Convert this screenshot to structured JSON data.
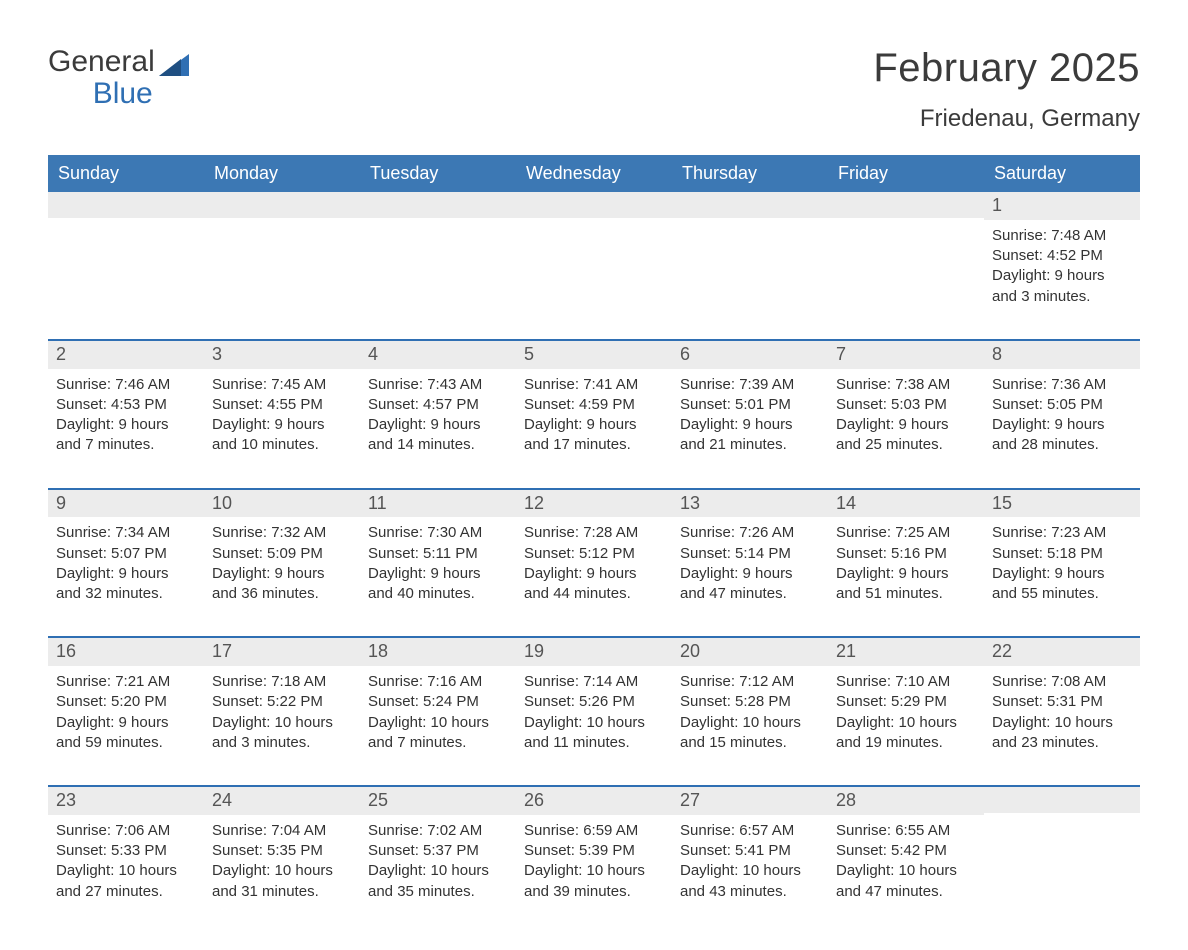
{
  "logo": {
    "word1": "General",
    "word2": "Blue",
    "accent_color": "#2f6fb3",
    "text_color": "#3b3b3b"
  },
  "title": "February 2025",
  "subtitle": "Friedenau, Germany",
  "colors": {
    "header_bg": "#3c78b4",
    "header_text": "#ffffff",
    "week_rule": "#2f6fb3",
    "daynum_bg": "#ececec",
    "body_text": "#333333",
    "page_bg": "#ffffff"
  },
  "typography": {
    "title_fontsize": 40,
    "subtitle_fontsize": 24,
    "dayhead_fontsize": 18,
    "daynum_fontsize": 18,
    "cell_fontsize": 15
  },
  "day_headers": [
    "Sunday",
    "Monday",
    "Tuesday",
    "Wednesday",
    "Thursday",
    "Friday",
    "Saturday"
  ],
  "weeks": [
    [
      null,
      null,
      null,
      null,
      null,
      null,
      {
        "day": "1",
        "sunrise": "Sunrise: 7:48 AM",
        "sunset": "Sunset: 4:52 PM",
        "daylight1": "Daylight: 9 hours",
        "daylight2": "and 3 minutes."
      }
    ],
    [
      {
        "day": "2",
        "sunrise": "Sunrise: 7:46 AM",
        "sunset": "Sunset: 4:53 PM",
        "daylight1": "Daylight: 9 hours",
        "daylight2": "and 7 minutes."
      },
      {
        "day": "3",
        "sunrise": "Sunrise: 7:45 AM",
        "sunset": "Sunset: 4:55 PM",
        "daylight1": "Daylight: 9 hours",
        "daylight2": "and 10 minutes."
      },
      {
        "day": "4",
        "sunrise": "Sunrise: 7:43 AM",
        "sunset": "Sunset: 4:57 PM",
        "daylight1": "Daylight: 9 hours",
        "daylight2": "and 14 minutes."
      },
      {
        "day": "5",
        "sunrise": "Sunrise: 7:41 AM",
        "sunset": "Sunset: 4:59 PM",
        "daylight1": "Daylight: 9 hours",
        "daylight2": "and 17 minutes."
      },
      {
        "day": "6",
        "sunrise": "Sunrise: 7:39 AM",
        "sunset": "Sunset: 5:01 PM",
        "daylight1": "Daylight: 9 hours",
        "daylight2": "and 21 minutes."
      },
      {
        "day": "7",
        "sunrise": "Sunrise: 7:38 AM",
        "sunset": "Sunset: 5:03 PM",
        "daylight1": "Daylight: 9 hours",
        "daylight2": "and 25 minutes."
      },
      {
        "day": "8",
        "sunrise": "Sunrise: 7:36 AM",
        "sunset": "Sunset: 5:05 PM",
        "daylight1": "Daylight: 9 hours",
        "daylight2": "and 28 minutes."
      }
    ],
    [
      {
        "day": "9",
        "sunrise": "Sunrise: 7:34 AM",
        "sunset": "Sunset: 5:07 PM",
        "daylight1": "Daylight: 9 hours",
        "daylight2": "and 32 minutes."
      },
      {
        "day": "10",
        "sunrise": "Sunrise: 7:32 AM",
        "sunset": "Sunset: 5:09 PM",
        "daylight1": "Daylight: 9 hours",
        "daylight2": "and 36 minutes."
      },
      {
        "day": "11",
        "sunrise": "Sunrise: 7:30 AM",
        "sunset": "Sunset: 5:11 PM",
        "daylight1": "Daylight: 9 hours",
        "daylight2": "and 40 minutes."
      },
      {
        "day": "12",
        "sunrise": "Sunrise: 7:28 AM",
        "sunset": "Sunset: 5:12 PM",
        "daylight1": "Daylight: 9 hours",
        "daylight2": "and 44 minutes."
      },
      {
        "day": "13",
        "sunrise": "Sunrise: 7:26 AM",
        "sunset": "Sunset: 5:14 PM",
        "daylight1": "Daylight: 9 hours",
        "daylight2": "and 47 minutes."
      },
      {
        "day": "14",
        "sunrise": "Sunrise: 7:25 AM",
        "sunset": "Sunset: 5:16 PM",
        "daylight1": "Daylight: 9 hours",
        "daylight2": "and 51 minutes."
      },
      {
        "day": "15",
        "sunrise": "Sunrise: 7:23 AM",
        "sunset": "Sunset: 5:18 PM",
        "daylight1": "Daylight: 9 hours",
        "daylight2": "and 55 minutes."
      }
    ],
    [
      {
        "day": "16",
        "sunrise": "Sunrise: 7:21 AM",
        "sunset": "Sunset: 5:20 PM",
        "daylight1": "Daylight: 9 hours",
        "daylight2": "and 59 minutes."
      },
      {
        "day": "17",
        "sunrise": "Sunrise: 7:18 AM",
        "sunset": "Sunset: 5:22 PM",
        "daylight1": "Daylight: 10 hours",
        "daylight2": "and 3 minutes."
      },
      {
        "day": "18",
        "sunrise": "Sunrise: 7:16 AM",
        "sunset": "Sunset: 5:24 PM",
        "daylight1": "Daylight: 10 hours",
        "daylight2": "and 7 minutes."
      },
      {
        "day": "19",
        "sunrise": "Sunrise: 7:14 AM",
        "sunset": "Sunset: 5:26 PM",
        "daylight1": "Daylight: 10 hours",
        "daylight2": "and 11 minutes."
      },
      {
        "day": "20",
        "sunrise": "Sunrise: 7:12 AM",
        "sunset": "Sunset: 5:28 PM",
        "daylight1": "Daylight: 10 hours",
        "daylight2": "and 15 minutes."
      },
      {
        "day": "21",
        "sunrise": "Sunrise: 7:10 AM",
        "sunset": "Sunset: 5:29 PM",
        "daylight1": "Daylight: 10 hours",
        "daylight2": "and 19 minutes."
      },
      {
        "day": "22",
        "sunrise": "Sunrise: 7:08 AM",
        "sunset": "Sunset: 5:31 PM",
        "daylight1": "Daylight: 10 hours",
        "daylight2": "and 23 minutes."
      }
    ],
    [
      {
        "day": "23",
        "sunrise": "Sunrise: 7:06 AM",
        "sunset": "Sunset: 5:33 PM",
        "daylight1": "Daylight: 10 hours",
        "daylight2": "and 27 minutes."
      },
      {
        "day": "24",
        "sunrise": "Sunrise: 7:04 AM",
        "sunset": "Sunset: 5:35 PM",
        "daylight1": "Daylight: 10 hours",
        "daylight2": "and 31 minutes."
      },
      {
        "day": "25",
        "sunrise": "Sunrise: 7:02 AM",
        "sunset": "Sunset: 5:37 PM",
        "daylight1": "Daylight: 10 hours",
        "daylight2": "and 35 minutes."
      },
      {
        "day": "26",
        "sunrise": "Sunrise: 6:59 AM",
        "sunset": "Sunset: 5:39 PM",
        "daylight1": "Daylight: 10 hours",
        "daylight2": "and 39 minutes."
      },
      {
        "day": "27",
        "sunrise": "Sunrise: 6:57 AM",
        "sunset": "Sunset: 5:41 PM",
        "daylight1": "Daylight: 10 hours",
        "daylight2": "and 43 minutes."
      },
      {
        "day": "28",
        "sunrise": "Sunrise: 6:55 AM",
        "sunset": "Sunset: 5:42 PM",
        "daylight1": "Daylight: 10 hours",
        "daylight2": "and 47 minutes."
      },
      null
    ]
  ]
}
